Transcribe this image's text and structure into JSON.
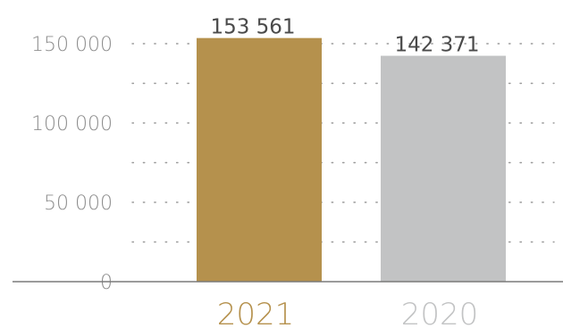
{
  "chart_data": {
    "type": "bar",
    "categories": [
      "2021",
      "2020"
    ],
    "values": [
      153561,
      142371
    ],
    "value_labels": [
      "153 561",
      "142 371"
    ],
    "y_ticks": [
      0,
      50000,
      100000,
      150000
    ],
    "y_tick_labels": [
      "0",
      "50 000",
      "100 000",
      "150 000"
    ],
    "ylim": [
      0,
      180000
    ],
    "title": "",
    "xlabel": "",
    "ylabel": "",
    "grid": "dotted horizontal",
    "colors": {
      "bars": [
        "#b5914d",
        "#c2c3c4"
      ],
      "category_labels": [
        "#b5914d",
        "#c2c3c4"
      ],
      "grid": "#9a9a9a",
      "axis": "#7a7a7a"
    }
  }
}
